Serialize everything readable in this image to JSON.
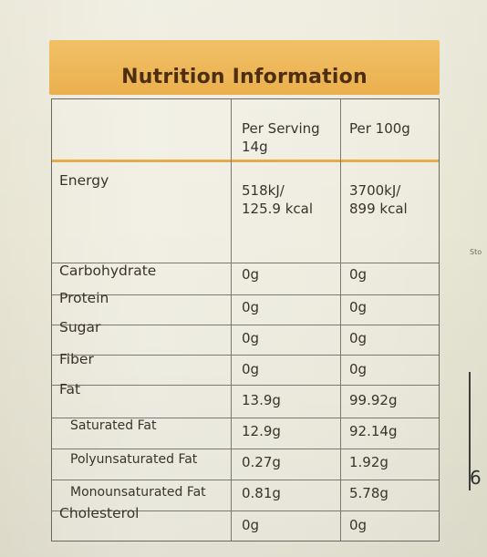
{
  "label": {
    "title": "Nutrition Information",
    "columns": {
      "per_serving": [
        "Per Serving",
        "14g"
      ],
      "per_100g": "Per 100g"
    },
    "rows": [
      {
        "name": "Energy",
        "per_serving": [
          "518kJ/",
          "125.9 kcal"
        ],
        "per_100g": [
          "3700kJ/",
          "899 kcal"
        ]
      },
      {
        "name": "Carbohydrate",
        "per_serving": "0g",
        "per_100g": "0g"
      },
      {
        "name": "Protein",
        "per_serving": "0g",
        "per_100g": "0g"
      },
      {
        "name": "Sugar",
        "per_serving": "0g",
        "per_100g": "0g"
      },
      {
        "name": "Fiber",
        "per_serving": "0g",
        "per_100g": "0g"
      },
      {
        "name": "Fat",
        "per_serving": "13.9g",
        "per_100g": "99.92g"
      },
      {
        "name": "Saturated Fat",
        "per_serving": "12.9g",
        "per_100g": "92.14g"
      },
      {
        "name": "Polyunsaturated Fat",
        "per_serving": "0.27g",
        "per_100g": "1.92g"
      },
      {
        "name": "Monounsaturated Fat",
        "per_serving": "0.81g",
        "per_100g": "5.78g"
      },
      {
        "name": "Cholesterol",
        "per_serving": "0g",
        "per_100g": "0g"
      }
    ]
  },
  "edge": {
    "partial_text": "Sto",
    "partial_digit": "6"
  }
}
